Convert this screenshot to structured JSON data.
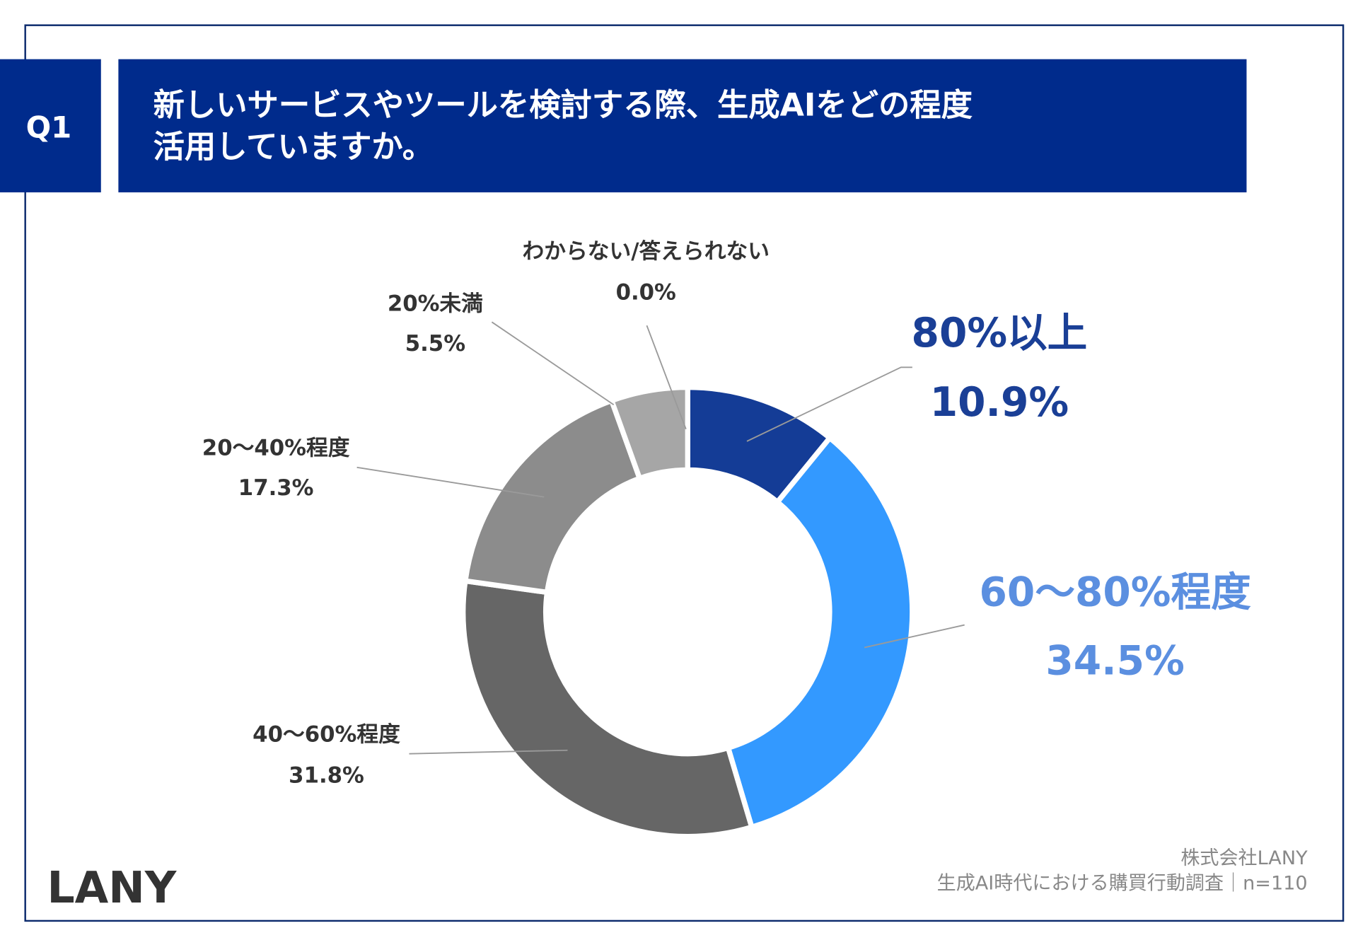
{
  "header": {
    "question_no": "Q1",
    "title_line1": "新しいサービスやツールを検討する際、生成AIをどの程度",
    "title_line2": "活用していますか。"
  },
  "colors": {
    "header_bg": "#002b8c",
    "border": "#0d2c6e",
    "accent_dark_blue": "#143c96",
    "accent_light_blue": "#3399ff",
    "label_light_blue": "#5b8fe0"
  },
  "chart_data": {
    "type": "pie",
    "donut": true,
    "start": "top, clockwise",
    "slices": [
      {
        "label": "80%以上",
        "value": 10.9,
        "value_label": "10.9%",
        "color": "#143c96",
        "label_color": "#1a3f96"
      },
      {
        "label": "60〜80%程度",
        "value": 34.5,
        "value_label": "34.5%",
        "color": "#3399ff",
        "label_color": "#5b8fe0"
      },
      {
        "label": "40〜60%程度",
        "value": 31.8,
        "value_label": "31.8%",
        "color": "#666666",
        "label_color": "#333333"
      },
      {
        "label": "20〜40%程度",
        "value": 17.3,
        "value_label": "17.3%",
        "color": "#8c8c8c",
        "label_color": "#333333"
      },
      {
        "label": "20%未満",
        "value": 5.5,
        "value_label": "5.5%",
        "color": "#a6a6a6",
        "label_color": "#333333"
      },
      {
        "label": "わからない/答えられない",
        "value": 0.0,
        "value_label": "0.0%",
        "color": "#cccccc",
        "label_color": "#333333"
      }
    ]
  },
  "footer": {
    "logo": "LANY",
    "company": "株式会社LANY",
    "source": "生成AI時代における購買行動調査｜n=110"
  }
}
